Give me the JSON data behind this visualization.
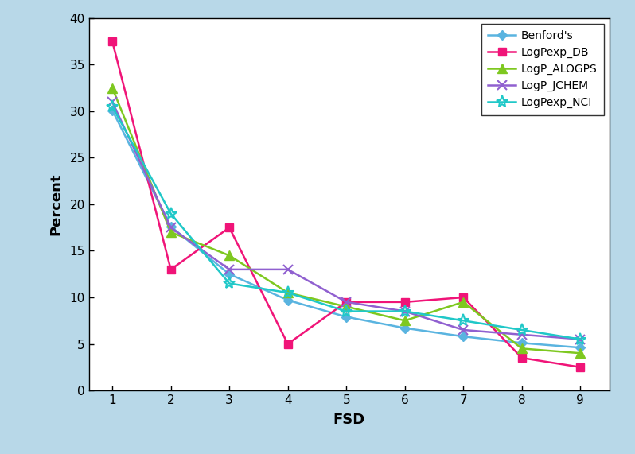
{
  "fsd": [
    1,
    2,
    3,
    4,
    5,
    6,
    7,
    8,
    9
  ],
  "benford": [
    30.1,
    17.6,
    12.5,
    9.7,
    7.9,
    6.7,
    5.8,
    5.1,
    4.6
  ],
  "logpexp_db": [
    37.5,
    13.0,
    17.5,
    5.0,
    9.5,
    9.5,
    10.0,
    3.5,
    2.5
  ],
  "logp_alogps": [
    32.5,
    17.0,
    14.5,
    10.5,
    9.0,
    7.5,
    9.5,
    4.5,
    4.0
  ],
  "logp_jchem": [
    31.0,
    17.5,
    13.0,
    13.0,
    9.5,
    8.5,
    6.5,
    6.0,
    5.5
  ],
  "logpexp_nci": [
    30.5,
    19.0,
    11.5,
    10.5,
    8.5,
    8.5,
    7.5,
    6.5,
    5.5
  ],
  "series_labels": [
    "Benford's",
    "LogPexp_DB",
    "LogP_ALOGPS",
    "LogP_JCHEM",
    "LogPexp_NCI"
  ],
  "colors": [
    "#5ab4e0",
    "#f01478",
    "#7ec820",
    "#9060d0",
    "#20c8c8"
  ],
  "markers": [
    "D",
    "s",
    "^",
    "x",
    "*"
  ],
  "xlabel": "FSD",
  "ylabel": "Percent",
  "ylim": [
    0,
    40
  ],
  "xlim": [
    0.6,
    9.5
  ],
  "yticks": [
    0,
    5,
    10,
    15,
    20,
    25,
    30,
    35,
    40
  ],
  "xticks": [
    1,
    2,
    3,
    4,
    5,
    6,
    7,
    8,
    9
  ],
  "background_color": "#b8d8e8",
  "plot_bg_color": "#ffffff",
  "linewidth": 1.8,
  "markersize": 6
}
